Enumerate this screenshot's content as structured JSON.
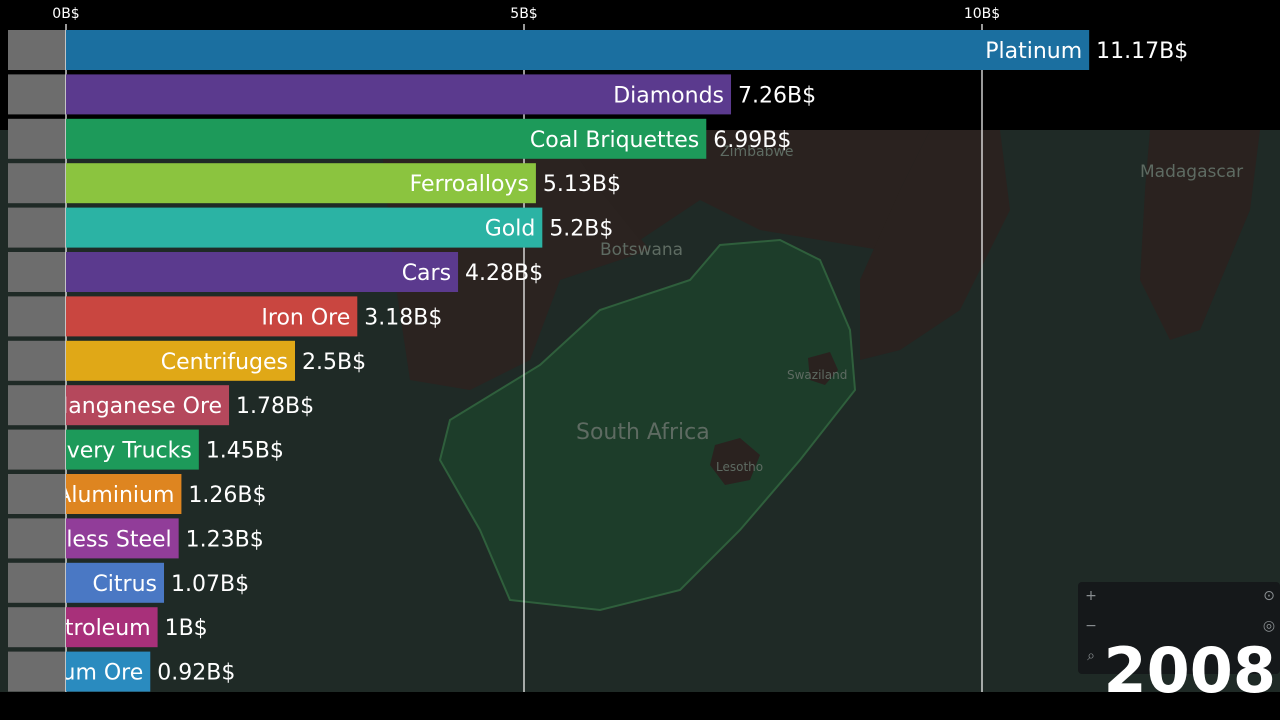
{
  "chart_data": {
    "type": "bar",
    "orientation": "horizontal",
    "x_ticks": [
      "0B$",
      "5B$",
      "10B$"
    ],
    "x_tick_values": [
      0,
      5,
      10
    ],
    "xlim": [
      0,
      13.95
    ],
    "grid": true,
    "categories": [
      "Platinum",
      "Diamonds",
      "Coal Briquettes",
      "Ferroalloys",
      "Gold",
      "Cars",
      "Iron Ore",
      "Centrifuges",
      "Manganese Ore",
      "Delivery Trucks",
      "Aluminium",
      "Stainless Steel",
      "Citrus",
      "Petroleum",
      "Aluminium Ore"
    ],
    "values": [
      11.17,
      7.26,
      6.99,
      5.13,
      5.2,
      4.28,
      3.18,
      2.5,
      1.78,
      1.45,
      1.26,
      1.23,
      1.07,
      1,
      0.92
    ],
    "value_labels": [
      "11.17B$",
      "7.26B$",
      "6.99B$",
      "5.13B$",
      "5.2B$",
      "4.28B$",
      "3.18B$",
      "2.5B$",
      "1.78B$",
      "1.45B$",
      "1.26B$",
      "1.23B$",
      "1.07B$",
      "1B$",
      "0.92B$"
    ],
    "colors": [
      "#1b6fa0",
      "#5b3a8e",
      "#1d9a5a",
      "#8bc43f",
      "#2bb3a4",
      "#5b3a8e",
      "#c94640",
      "#e0a817",
      "#b5485c",
      "#1d9a5a",
      "#de8520",
      "#913d99",
      "#4a78c4",
      "#a8307a",
      "#2a8bbf"
    ],
    "year": "2008"
  },
  "map": {
    "labels": [
      "Zimbabwe",
      "Botswana",
      "Madagascar",
      "Swaziland",
      "South Africa",
      "Lesotho"
    ]
  }
}
